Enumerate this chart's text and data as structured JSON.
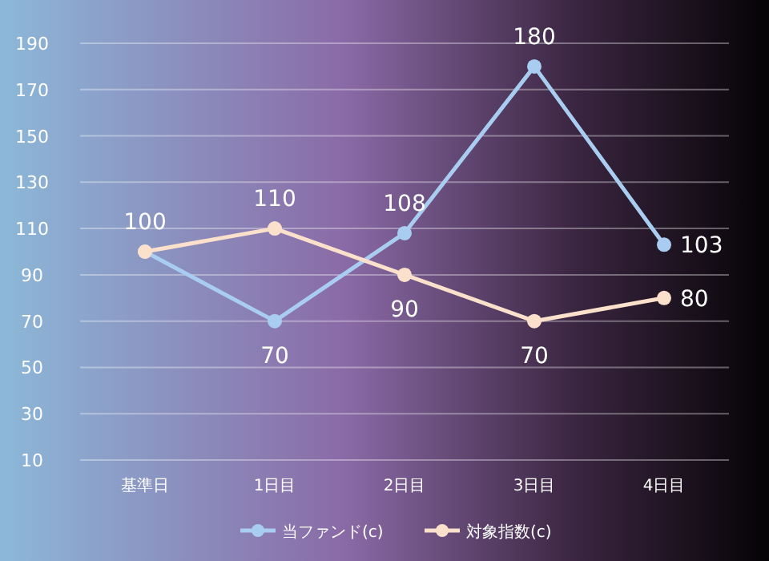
{
  "chart_data": {
    "type": "line",
    "categories": [
      "基準日",
      "1日目",
      "2日目",
      "3日目",
      "4日目"
    ],
    "series": [
      {
        "name": "当ファンド(c)",
        "color": "#a9cdf0",
        "values": [
          100,
          70,
          108,
          180,
          103
        ],
        "value_labels": [
          "100",
          "70",
          "108",
          "180",
          "103"
        ]
      },
      {
        "name": "対象指数(c)",
        "color": "#fbe1cb",
        "values": [
          100,
          110,
          90,
          70,
          80
        ],
        "value_labels": [
          null,
          "110",
          "90",
          "70",
          "80"
        ]
      }
    ],
    "ylim": [
      10,
      190
    ],
    "yticks": [
      10,
      30,
      50,
      70,
      90,
      110,
      130,
      150,
      170,
      190
    ],
    "grid": "y",
    "legend": "bottom",
    "marker": "circle",
    "line_style": "solid"
  }
}
